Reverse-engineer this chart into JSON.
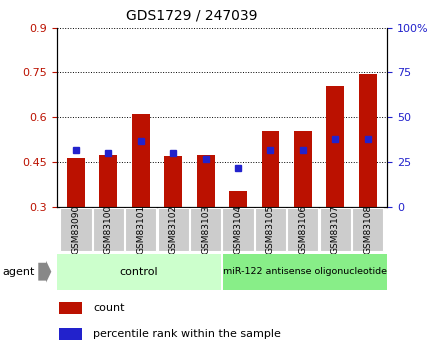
{
  "title": "GDS1729 / 247039",
  "categories": [
    "GSM83090",
    "GSM83100",
    "GSM83101",
    "GSM83102",
    "GSM83103",
    "GSM83104",
    "GSM83105",
    "GSM83106",
    "GSM83107",
    "GSM83108"
  ],
  "red_values": [
    0.465,
    0.475,
    0.61,
    0.47,
    0.475,
    0.355,
    0.555,
    0.555,
    0.705,
    0.745
  ],
  "blue_values": [
    32,
    30,
    37,
    30,
    27,
    22,
    32,
    32,
    38,
    38
  ],
  "control_label": "control",
  "treatment_label": "miR-122 antisense oligonucleotide",
  "agent_label": "agent",
  "left_ylim": [
    0.3,
    0.9
  ],
  "left_yticks": [
    0.3,
    0.45,
    0.6,
    0.75,
    0.9
  ],
  "left_yticklabels": [
    "0.3",
    "0.45",
    "0.6",
    "0.75",
    "0.9"
  ],
  "right_ylim": [
    0.0,
    100.0
  ],
  "right_yticks": [
    0,
    25,
    50,
    75,
    100
  ],
  "right_yticklabels": [
    "0",
    "25",
    "50",
    "75",
    "100%"
  ],
  "red_color": "#bb1100",
  "blue_color": "#2222cc",
  "control_bg": "#ccffcc",
  "treatment_bg": "#88ee88",
  "bar_width": 0.55,
  "background_color": "#ffffff",
  "tick_area_bg": "#cccccc",
  "legend_count": "count",
  "legend_pct": "percentile rank within the sample",
  "baseline": 0.3
}
